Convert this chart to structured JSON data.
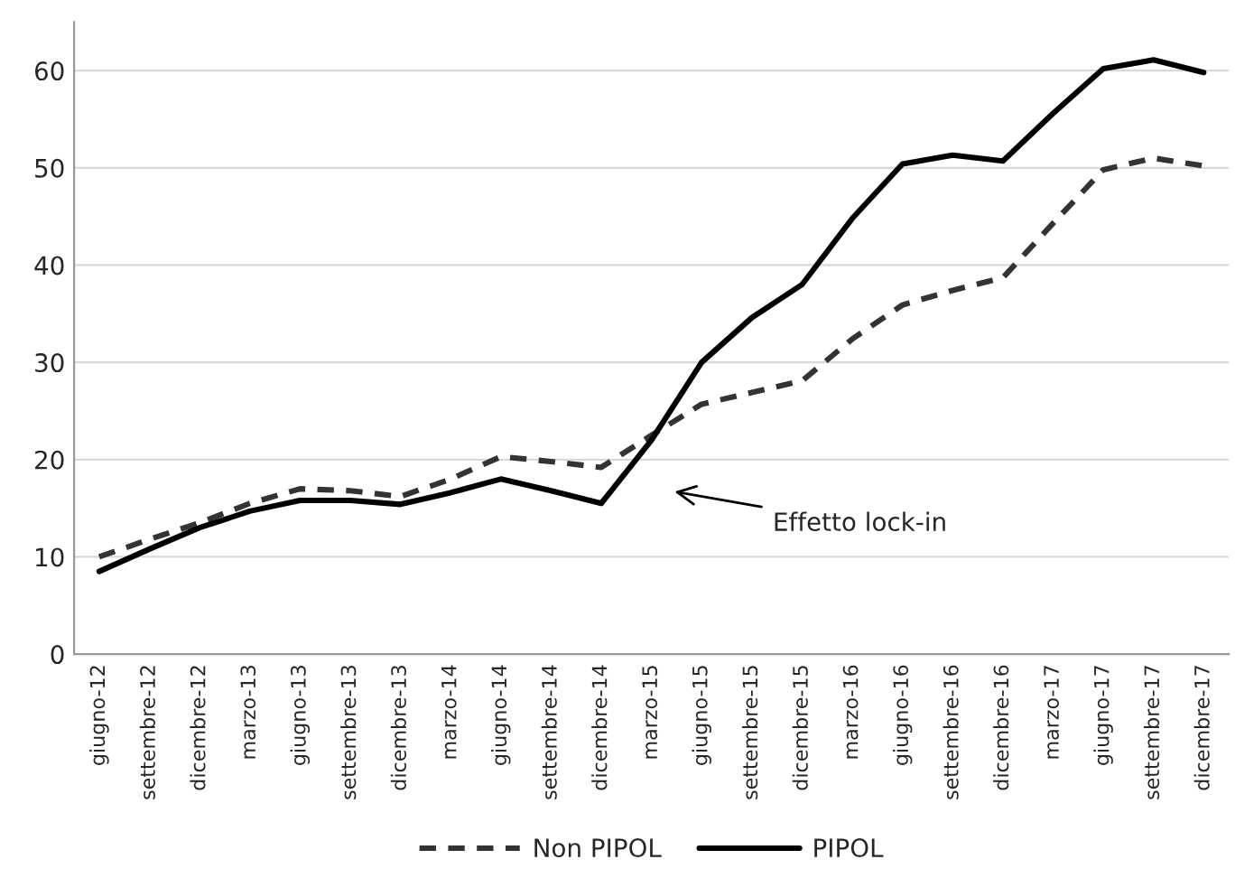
{
  "chart_data": {
    "type": "line",
    "categories": [
      "giugno-12",
      "settembre-12",
      "dicembre-12",
      "marzo-13",
      "giugno-13",
      "settembre-13",
      "dicembre-13",
      "marzo-14",
      "giugno-14",
      "settembre-14",
      "dicembre-14",
      "marzo-15",
      "giugno-15",
      "settembre-15",
      "dicembre-15",
      "marzo-16",
      "giugno-16",
      "settembre-16",
      "dicembre-16",
      "marzo-17",
      "giugno-17",
      "settembre-17",
      "dicembre-17"
    ],
    "series": [
      {
        "name": "Non PIPOL",
        "color": "#333333",
        "line_style": "dashed",
        "values": [
          10,
          11.8,
          13.5,
          15.5,
          17,
          16.8,
          16.2,
          18,
          20.3,
          19.8,
          19.2,
          22.5,
          25.7,
          26.9,
          28.1,
          32.4,
          35.9,
          37.4,
          38.7,
          44.3,
          49.8,
          51,
          50.2
        ]
      },
      {
        "name": "PIPOL",
        "color": "#000000",
        "line_style": "solid",
        "values": [
          8.5,
          10.8,
          13,
          14.7,
          15.8,
          15.8,
          15.4,
          16.6,
          18,
          16.8,
          15.5,
          22,
          30,
          34.6,
          38,
          44.8,
          50.4,
          51.3,
          50.7,
          55.6,
          60.2,
          61.1,
          59.8
        ]
      }
    ],
    "ylim": [
      0,
      65
    ],
    "yticks": [
      0,
      10,
      20,
      30,
      40,
      50,
      60
    ],
    "grid": "y",
    "legend": "bottom",
    "marker": "none",
    "annotations": [
      "Effetto lock-in"
    ]
  }
}
